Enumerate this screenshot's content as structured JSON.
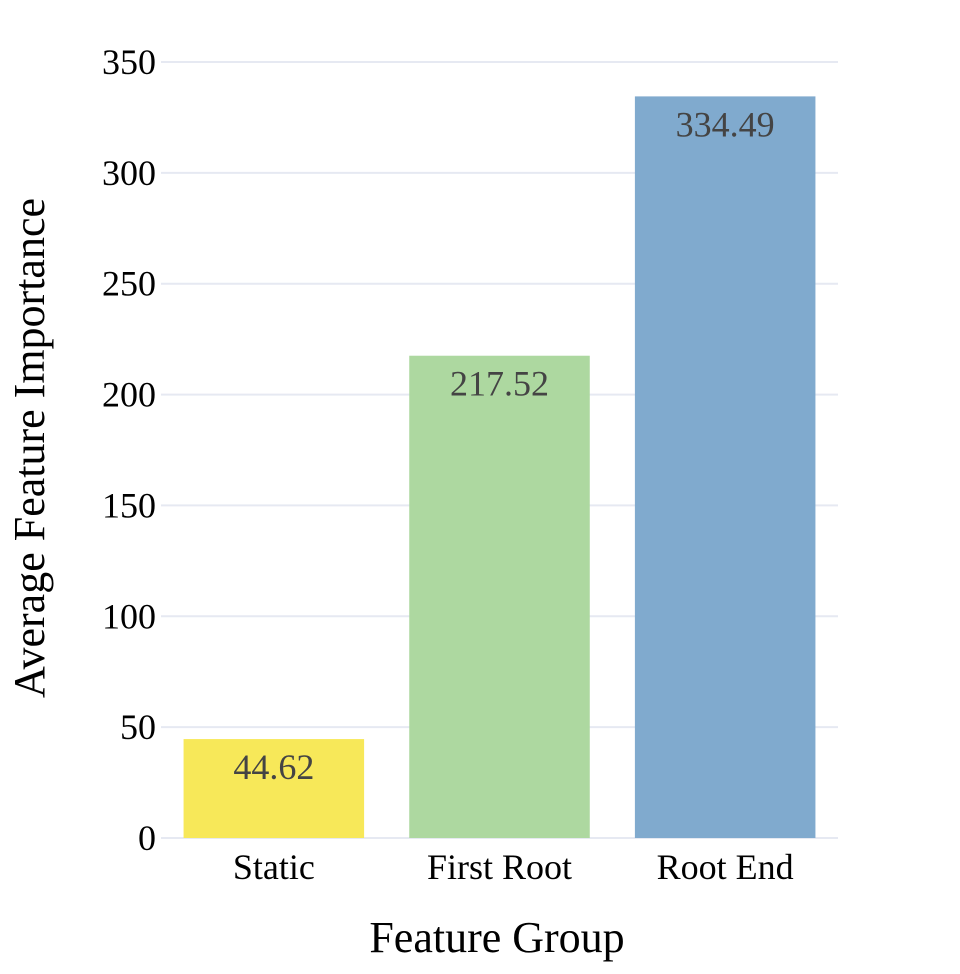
{
  "chart_data": {
    "type": "bar",
    "categories": [
      "Static",
      "First Root",
      "Root End"
    ],
    "values": [
      44.62,
      217.52,
      334.49
    ],
    "data_labels": [
      "44.62",
      "217.52",
      "334.49"
    ],
    "colors": [
      "#f7e859",
      "#add8a0",
      "#80aace"
    ],
    "xlabel": "Feature Group",
    "ylabel": "Average Feature Importance",
    "ylim": [
      0,
      350
    ],
    "yticks": [
      0,
      50,
      100,
      150,
      200,
      250,
      300,
      350
    ],
    "ytick_labels": [
      "0",
      "50",
      "100",
      "150",
      "200",
      "250",
      "300",
      "350"
    ],
    "grid": true,
    "legend": "none"
  }
}
